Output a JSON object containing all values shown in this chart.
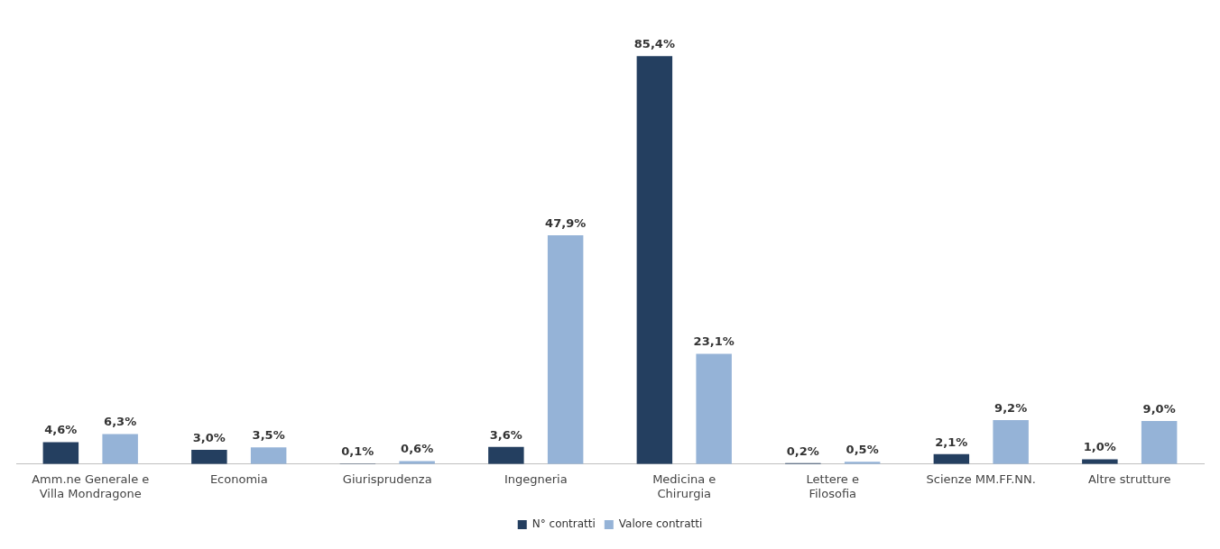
{
  "chart_data": {
    "type": "bar",
    "categories": [
      "Amm.ne Generale e Villa Mondragone",
      "Economia",
      "Giurisprudenza",
      "Ingegneria",
      "Medicina e Chirurgia",
      "Lettere e Filosofia",
      "Scienze MM.FF.NN.",
      "Altre strutture"
    ],
    "series": [
      {
        "name": "N° contratti",
        "color": "#243f60",
        "values": [
          4.6,
          3.0,
          0.1,
          3.6,
          85.4,
          0.2,
          2.1,
          1.0
        ],
        "value_labels": [
          "4,6%",
          "3,0%",
          "0,1%",
          "3,6%",
          "85,4%",
          "0,2%",
          "2,1%",
          "1,0%"
        ]
      },
      {
        "name": "Valore contratti",
        "color": "#95b3d7",
        "values": [
          6.3,
          3.5,
          0.6,
          47.9,
          23.1,
          0.5,
          9.2,
          9.0
        ],
        "value_labels": [
          "6,3%",
          "3,5%",
          "0,6%",
          "47,9%",
          "23,1%",
          "0,5%",
          "9,2%",
          "9,0%"
        ]
      }
    ],
    "legend": "bottom",
    "grid": false
  }
}
